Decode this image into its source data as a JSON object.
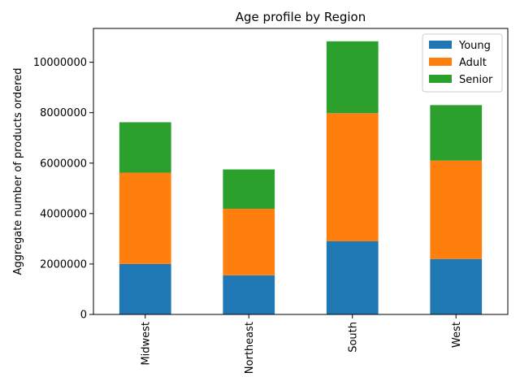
{
  "chart_data": {
    "type": "bar",
    "stacked": true,
    "title": "Age profile by Region",
    "xlabel": "",
    "ylabel": "Aggregate number of products ordered",
    "categories": [
      "Midwest",
      "Northeast",
      "South",
      "West"
    ],
    "series": [
      {
        "name": "Young",
        "color": "#1f77b4",
        "values": [
          2000000,
          1550000,
          2900000,
          2200000
        ]
      },
      {
        "name": "Adult",
        "color": "#ff7f0e",
        "values": [
          3620000,
          2640000,
          5080000,
          3900000
        ]
      },
      {
        "name": "Senior",
        "color": "#2ca02c",
        "values": [
          2000000,
          1560000,
          2850000,
          2200000
        ]
      }
    ],
    "ylim": [
      0,
      11340000
    ],
    "yticks": [
      0,
      2000000,
      4000000,
      6000000,
      8000000,
      10000000
    ],
    "ytick_labels": [
      "0",
      "2000000",
      "4000000",
      "6000000",
      "8000000",
      "10000000"
    ],
    "grid": false,
    "legend_position": "top-right"
  }
}
